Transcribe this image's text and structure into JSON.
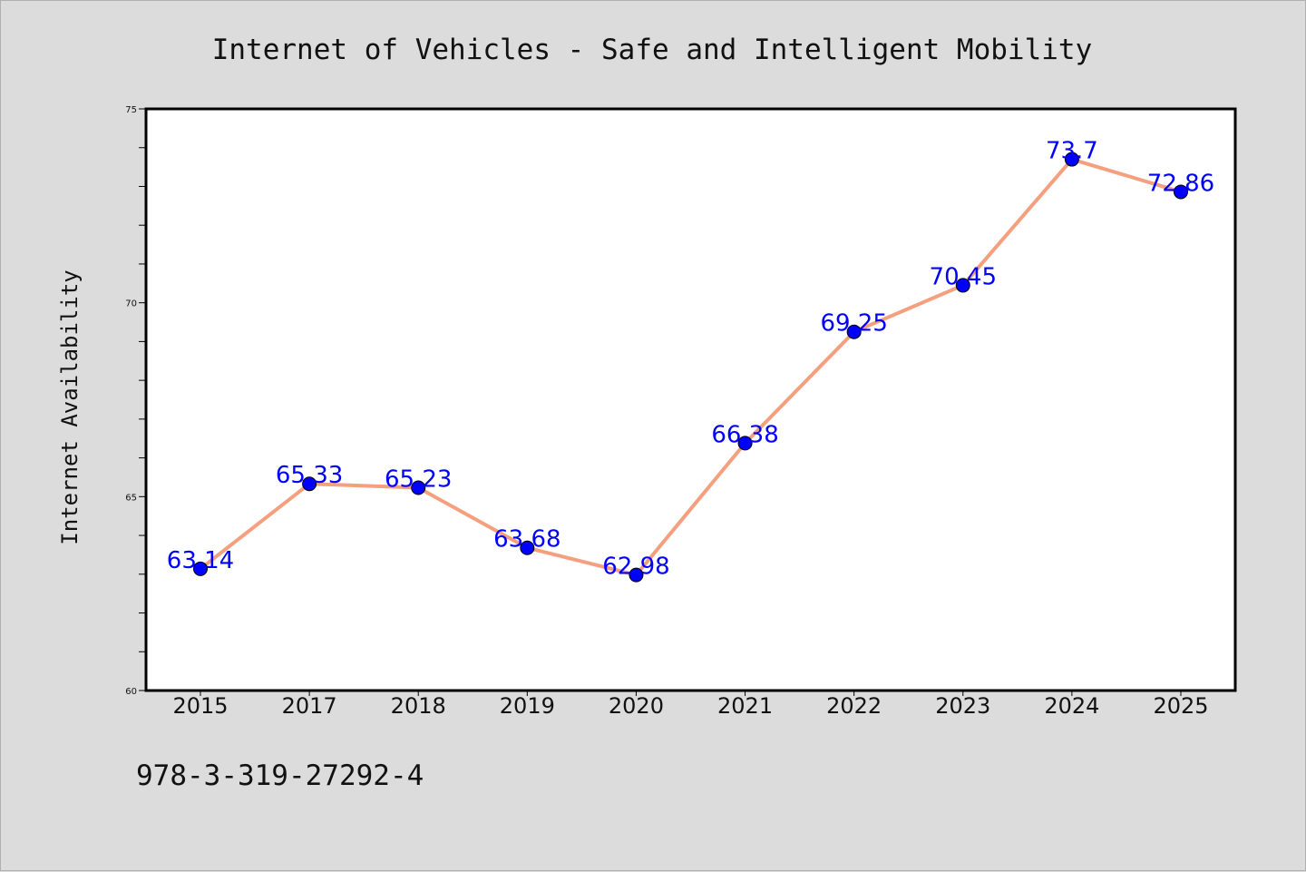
{
  "chart_data": {
    "type": "line",
    "title": "Internet of Vehicles - Safe and Intelligent Mobility",
    "xlabel": "",
    "ylabel": "Internet Availability",
    "categories": [
      "2015",
      "2017",
      "2018",
      "2019",
      "2020",
      "2021",
      "2022",
      "2023",
      "2024",
      "2025"
    ],
    "series": [
      {
        "values": [
          63.14,
          65.33,
          65.23,
          63.68,
          62.98,
          66.38,
          69.25,
          70.45,
          73.7,
          72.86
        ],
        "labels": [
          "63.14",
          "65.33",
          "65.23",
          "63.68",
          "62.98",
          "66.38",
          "69.25",
          "70.45",
          "73.7",
          "72.86"
        ],
        "line_color": "#f4a07e",
        "marker_color": "#0000ff",
        "label_color": "#0000ff"
      }
    ],
    "ylim": [
      60,
      75
    ],
    "y_major_ticks": [
      "60",
      "65",
      "70",
      "75"
    ],
    "y_minor_step": 1,
    "grid": false,
    "legend": "none"
  },
  "footnote": "978-3-319-27292-4",
  "colors": {
    "background": "#dcdcdc",
    "plot_area": "#ffffff",
    "axis": "#000000"
  }
}
